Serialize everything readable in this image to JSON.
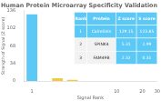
{
  "chart_data": {
    "type": "bar",
    "title": "Human Protein Microarray Specificity Validation",
    "xlabel": "Signal Rank",
    "ylabel": "Strength of Signal (Z score)",
    "x": [
      1,
      2,
      3
    ],
    "values": [
      129.15,
      5.31,
      2.32
    ],
    "colors": [
      "#5bc8f5",
      "#f5c842",
      "#f5c842"
    ],
    "log": "x",
    "xlim": [
      0.8,
      30
    ],
    "xticks": [
      1,
      10,
      20,
      30
    ],
    "ylim": [
      0,
      136
    ],
    "yticks": [
      0,
      34,
      68,
      102,
      136
    ],
    "grid": false,
    "table": {
      "headers": [
        "Rank",
        "Protein",
        "Z score",
        "S score"
      ],
      "rows": [
        [
          1,
          "Calretinin",
          129.15,
          123.85
        ],
        [
          2,
          "SPINK4",
          5.31,
          2.99
        ],
        [
          3,
          "FAM49B",
          2.32,
          0.31
        ]
      ],
      "header_color": "#5bc8f5",
      "row_colors": [
        "#5bc8f5",
        "#f2f2f2",
        "#f2f2f2"
      ]
    }
  }
}
